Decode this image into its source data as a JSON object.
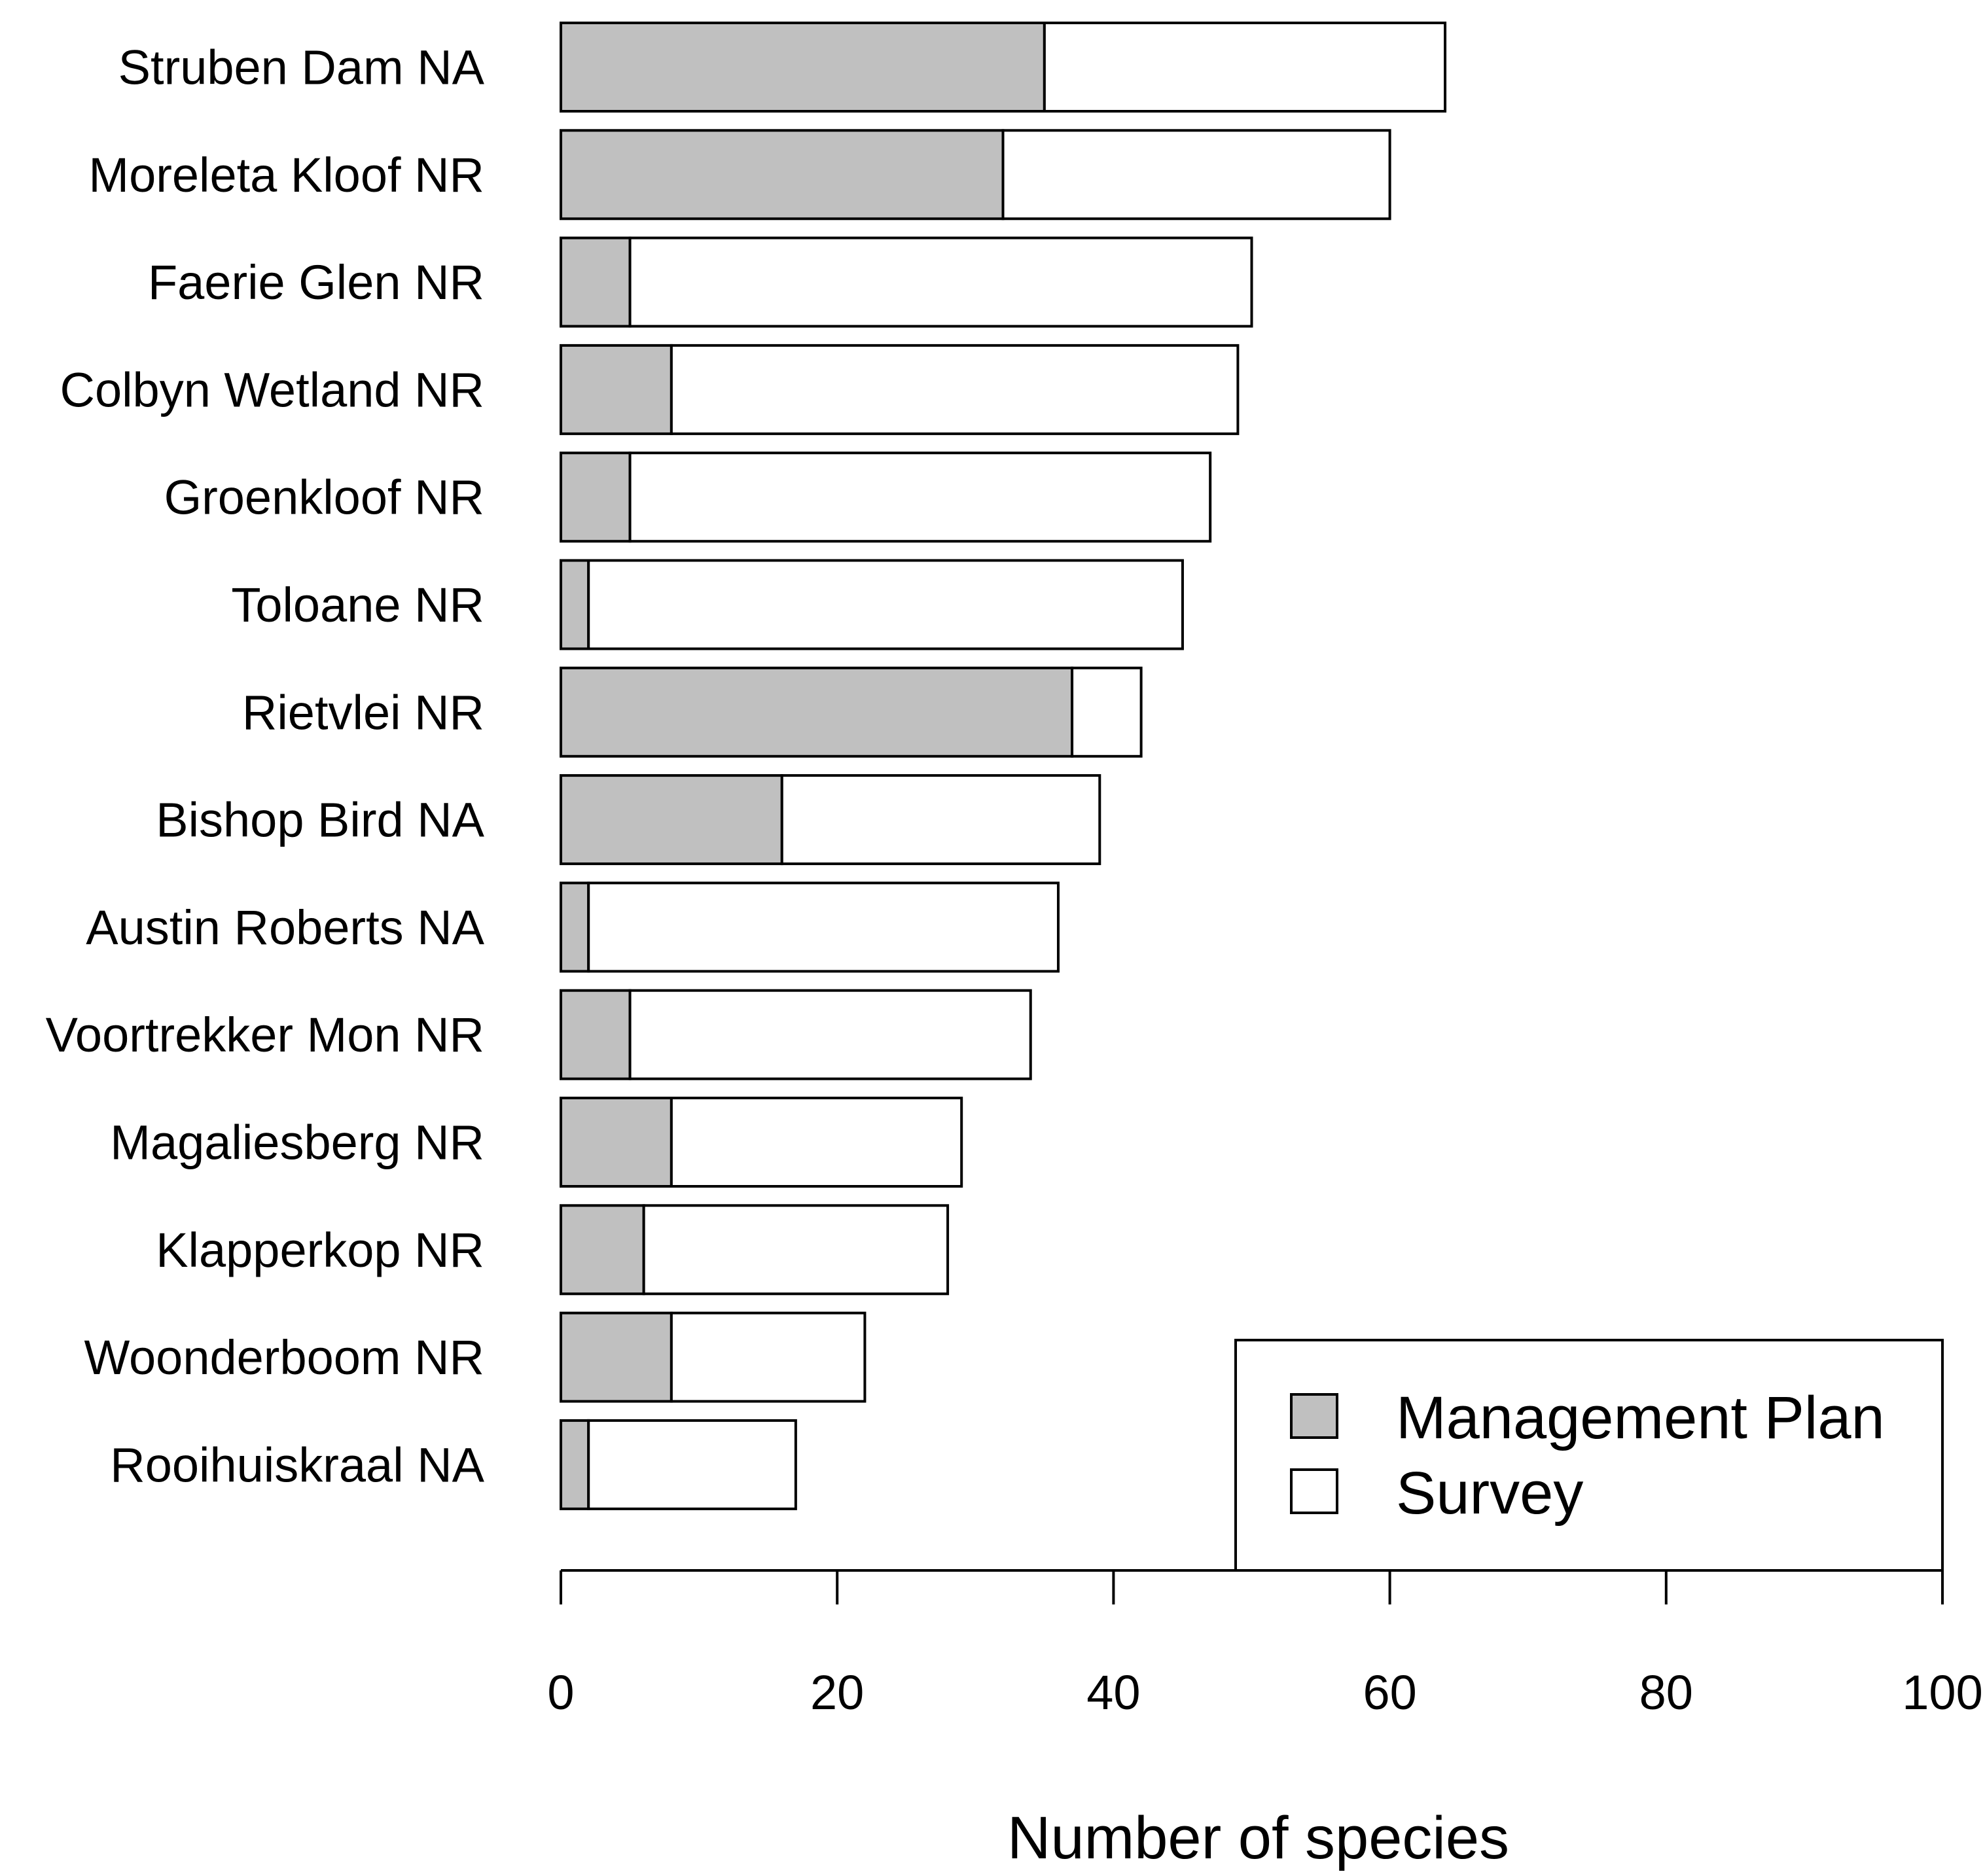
{
  "chart_data": {
    "type": "bar",
    "orientation": "horizontal",
    "stacked": true,
    "categories": [
      "Struben Dam NA",
      "Moreleta Kloof NR",
      "Faerie Glen NR",
      "Colbyn Wetland NR",
      "Groenkloof NR",
      "Toloane NR",
      "Rietvlei NR",
      "Bishop Bird NA",
      "Austin Roberts NA",
      "Voortrekker Mon NR",
      "Magaliesberg NR",
      "Klapperkop NR",
      "Woonderboom NR",
      "Rooihuiskraal NA"
    ],
    "series": [
      {
        "name": "Management Plan",
        "color": "#c0c0c0",
        "values": [
          35,
          32,
          5,
          8,
          5,
          2,
          37,
          16,
          2,
          5,
          8,
          6,
          8,
          2
        ]
      },
      {
        "name": "Survey",
        "color": "#ffffff",
        "values": [
          29,
          28,
          45,
          41,
          42,
          43,
          5,
          23,
          34,
          29,
          21,
          22,
          14,
          15
        ]
      }
    ],
    "title": "",
    "xlabel": "Number of species",
    "ylabel": "",
    "xlim": [
      0,
      100
    ],
    "xticks": [
      0,
      20,
      40,
      60,
      80,
      100
    ],
    "legend_position": "bottom-right",
    "grid": false
  }
}
